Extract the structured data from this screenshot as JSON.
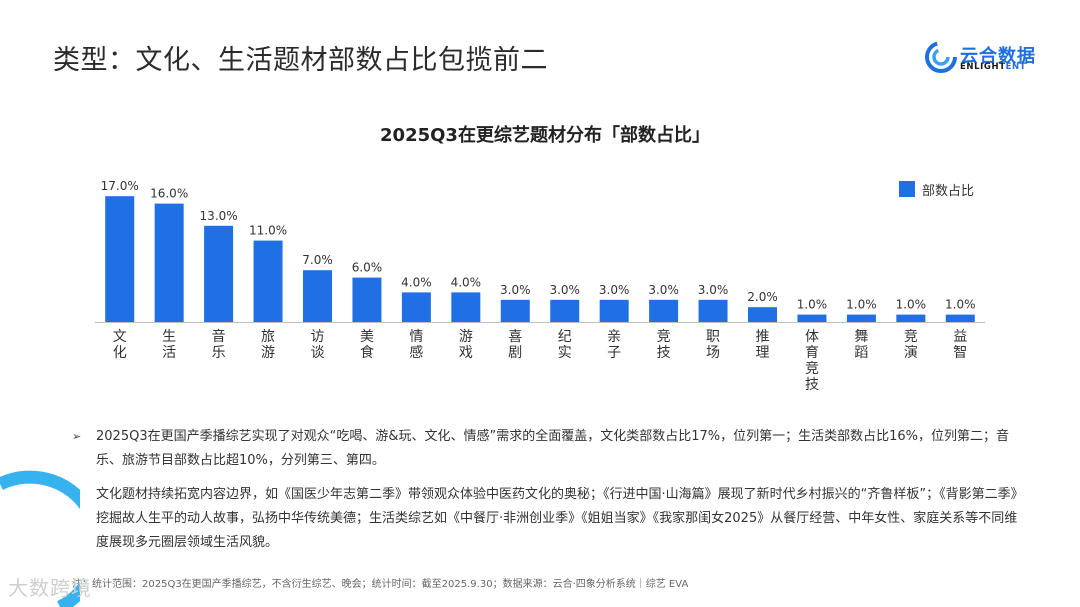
{
  "page": {
    "title": "类型：文化、生活题材部数占比包揽前二"
  },
  "logo": {
    "cn": "云合数据",
    "en_main": "ENLIGHT",
    "en_accent": "ENT"
  },
  "chart_data": {
    "type": "bar",
    "title": "2025Q3在更综艺题材分布「部数占比」",
    "categories": [
      "文化",
      "生活",
      "音乐",
      "旅游",
      "访谈",
      "美食",
      "情感",
      "游戏",
      "喜剧",
      "纪实",
      "亲子",
      "竞技",
      "职场",
      "推理",
      "体育竞技",
      "舞蹈",
      "竞演",
      "益智"
    ],
    "series": [
      {
        "name": "部数占比",
        "values": [
          17.0,
          16.0,
          13.0,
          11.0,
          7.0,
          6.0,
          4.0,
          4.0,
          3.0,
          3.0,
          3.0,
          3.0,
          3.0,
          2.0,
          1.0,
          1.0,
          1.0,
          1.0
        ]
      }
    ],
    "data_labels": [
      "17.0%",
      "16.0%",
      "13.0%",
      "11.0%",
      "7.0%",
      "6.0%",
      "4.0%",
      "4.0%",
      "3.0%",
      "3.0%",
      "3.0%",
      "3.0%",
      "3.0%",
      "2.0%",
      "1.0%",
      "1.0%",
      "1.0%",
      "1.0%"
    ],
    "legend_position": "top-right",
    "bar_color": "#1f6fe5",
    "grid": false
  },
  "bullets": [
    "2025Q3在更国产季播综艺实现了对观众“吃喝、游&玩、文化、情感”需求的全面覆盖，文化类部数占比17%，位列第一；生活类部数占比16%，位列第二；音乐、旅游节目部数占比超10%，分列第三、第四。",
    "文化题材持续拓宽内容边界，如《国医少年志第二季》带领观众体验中医药文化的奥秘；《行进中国·山海篇》展现了新时代乡村振兴的“齐鲁样板”；《背影第二季》挖掘故人生平的动人故事，弘扬中华传统美德；生活类综艺如《中餐厅·非洲创业季》《姐姐当家》《我家那闺女2025》从餐厅经营、中年女性、家庭关系等不同维度展现多元圈层领域生活风貌。"
  ],
  "bullet_marker": "➢",
  "footnote": "注：统计范围：2025Q3在更国产季播综艺，不含衍生综艺、晚会；统计时间：截至2025.9.30；数据来源：云合·四象分析系统｜综艺 EVA",
  "watermark": "大数跨境"
}
